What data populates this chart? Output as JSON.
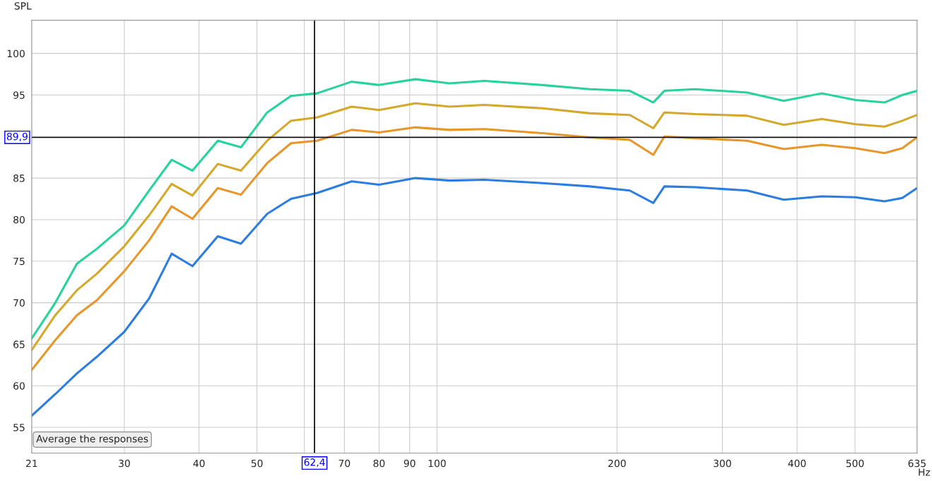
{
  "chart_data": {
    "type": "line",
    "xlabel": "Hz",
    "ylabel": "SPL",
    "x": [
      21,
      23,
      25,
      27,
      30,
      33,
      36,
      39,
      43,
      47,
      52,
      57,
      63,
      72,
      80,
      92,
      105,
      120,
      150,
      180,
      210,
      230,
      240,
      270,
      330,
      380,
      440,
      500,
      560,
      600,
      635
    ],
    "series": [
      {
        "color": "#26d39c",
        "values": [
          65.7,
          70,
          74.7,
          76.5,
          79.3,
          83.5,
          87.2,
          85.9,
          89.5,
          88.7,
          92.9,
          94.9,
          95.2,
          96.6,
          96.2,
          96.9,
          96.4,
          96.7,
          96.2,
          95.7,
          95.5,
          94.1,
          95.5,
          95.7,
          95.3,
          94.3,
          95.2,
          94.4,
          94.1,
          95.0,
          95.5
        ]
      },
      {
        "color": "#d4a82a",
        "values": [
          64.3,
          68.5,
          71.5,
          73.5,
          76.8,
          80.5,
          84.3,
          82.9,
          86.7,
          85.9,
          89.5,
          91.9,
          92.3,
          93.6,
          93.2,
          94.0,
          93.6,
          93.8,
          93.4,
          92.8,
          92.6,
          91.0,
          92.9,
          92.7,
          92.5,
          91.4,
          92.1,
          91.5,
          91.2,
          91.9,
          92.6
        ]
      },
      {
        "color": "#e8952a",
        "values": [
          61.9,
          65.5,
          68.5,
          70.3,
          73.8,
          77.5,
          81.6,
          80.1,
          83.8,
          83.0,
          86.8,
          89.2,
          89.5,
          90.8,
          90.5,
          91.1,
          90.8,
          90.9,
          90.4,
          89.9,
          89.6,
          87.8,
          90.0,
          89.8,
          89.5,
          88.5,
          89.0,
          88.6,
          88.0,
          88.6,
          89.9
        ]
      },
      {
        "color": "#2b7de0",
        "values": [
          56.4,
          59.0,
          61.5,
          63.5,
          66.5,
          70.5,
          75.9,
          74.4,
          78.0,
          77.1,
          80.7,
          82.5,
          83.2,
          84.6,
          84.2,
          85.0,
          84.7,
          84.8,
          84.4,
          84.0,
          83.5,
          82.0,
          84.0,
          83.9,
          83.5,
          82.4,
          82.8,
          82.7,
          82.2,
          82.6,
          83.8
        ]
      }
    ],
    "log": "x",
    "xlim": [
      21,
      635
    ],
    "ylim": [
      51.9,
      104
    ],
    "xticks": [
      21,
      30,
      40,
      50,
      {
        "value": 60,
        "label": null
      },
      70,
      80,
      90,
      100,
      200,
      300,
      400,
      500,
      635
    ],
    "yticks": [
      55,
      60,
      65,
      70,
      75,
      80,
      85,
      {
        "value": 90,
        "label": null
      },
      95,
      100
    ],
    "grid": true,
    "legend": false,
    "ref_lines": [
      {
        "axis": "x",
        "value": 62.4,
        "label": "62,4",
        "color": "#000000"
      },
      {
        "axis": "y",
        "value": 89.9,
        "label": "89,9",
        "color": "#000000"
      }
    ],
    "annotations": [
      "Average the responses"
    ]
  }
}
